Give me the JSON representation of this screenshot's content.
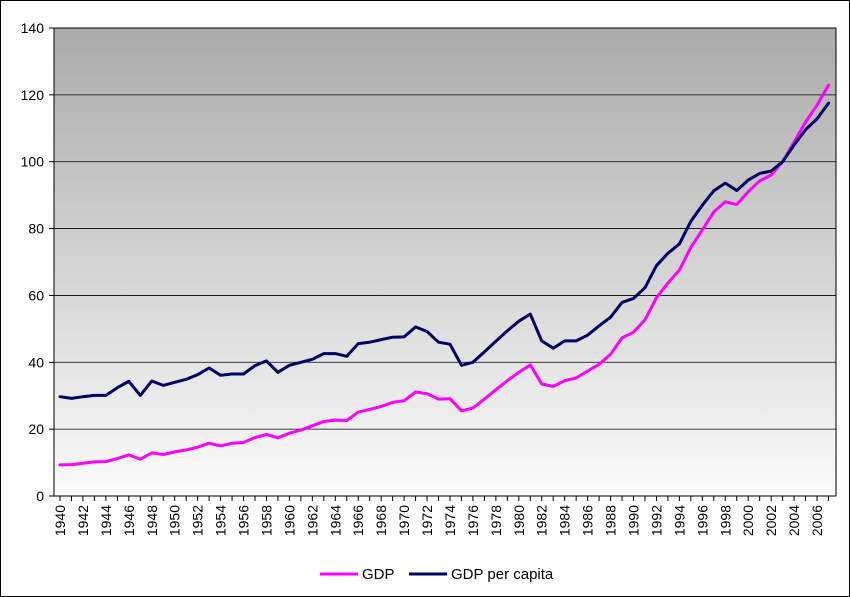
{
  "chart_data": {
    "type": "line",
    "title": "",
    "xlabel": "",
    "ylabel": "",
    "ylim": [
      0,
      140
    ],
    "yticks": [
      0,
      20,
      40,
      60,
      80,
      100,
      120,
      140
    ],
    "xlim": [
      1940,
      2007
    ],
    "xtick_labels": [
      "1940",
      "1942",
      "1944",
      "1946",
      "1948",
      "1950",
      "1952",
      "1954",
      "1956",
      "1958",
      "1960",
      "1962",
      "1964",
      "1966",
      "1968",
      "1970",
      "1972",
      "1974",
      "1976",
      "1978",
      "1980",
      "1982",
      "1984",
      "1986",
      "1988",
      "1990",
      "1992",
      "1994",
      "1996",
      "1998",
      "2000",
      "2002",
      "2004",
      "2006"
    ],
    "grid": "horizontal",
    "legend_position": "bottom",
    "background": "vertical gradient, gray to white",
    "x": [
      1940,
      1941,
      1942,
      1943,
      1944,
      1945,
      1946,
      1947,
      1948,
      1949,
      1950,
      1951,
      1952,
      1953,
      1954,
      1955,
      1956,
      1957,
      1958,
      1959,
      1960,
      1961,
      1962,
      1963,
      1964,
      1965,
      1966,
      1967,
      1968,
      1969,
      1970,
      1971,
      1972,
      1973,
      1974,
      1975,
      1976,
      1977,
      1978,
      1979,
      1980,
      1981,
      1982,
      1983,
      1984,
      1985,
      1986,
      1987,
      1988,
      1989,
      1990,
      1991,
      1992,
      1993,
      1994,
      1995,
      1996,
      1997,
      1998,
      1999,
      2000,
      2001,
      2002,
      2003,
      2004,
      2005,
      2006,
      2007
    ],
    "series": [
      {
        "name": "GDP",
        "color": "#ff00ff",
        "values": [
          9.3,
          9.4,
          9.8,
          10.2,
          10.3,
          11.2,
          12.3,
          11.0,
          12.9,
          12.4,
          13.2,
          13.8,
          14.6,
          15.8,
          15.0,
          15.8,
          16.0,
          17.5,
          18.4,
          17.4,
          18.8,
          19.7,
          21.0,
          22.3,
          22.7,
          22.6,
          25.1,
          25.9,
          26.8,
          28.0,
          28.5,
          31.1,
          30.6,
          29.0,
          29.1,
          25.5,
          26.3,
          29.0,
          31.8,
          34.5,
          37.0,
          39.2,
          33.5,
          32.8,
          34.5,
          35.3,
          37.4,
          39.4,
          42.4,
          47.3,
          49.0,
          52.7,
          59.3,
          63.7,
          67.6,
          74.4,
          79.6,
          85.0,
          88.0,
          87.2,
          91.0,
          94.3,
          96.0,
          100.0,
          105.9,
          111.9,
          116.9,
          122.9
        ]
      },
      {
        "name": "GDP per capita",
        "color": "#000066",
        "values": [
          29.7,
          29.2,
          29.7,
          30.1,
          30.1,
          32.4,
          34.3,
          30.1,
          34.4,
          33.1,
          34.0,
          34.9,
          36.3,
          38.3,
          36.1,
          36.5,
          36.5,
          39.0,
          40.4,
          37.0,
          39.1,
          40.0,
          40.9,
          42.6,
          42.6,
          41.8,
          45.6,
          46.0,
          46.8,
          47.5,
          47.6,
          50.6,
          49.2,
          46.0,
          45.4,
          39.1,
          40.0,
          43.1,
          46.3,
          49.4,
          52.3,
          54.4,
          46.4,
          44.2,
          46.4,
          46.4,
          48.1,
          50.9,
          53.5,
          57.9,
          59.1,
          62.3,
          68.9,
          72.6,
          75.4,
          82.2,
          87.0,
          91.3,
          93.6,
          91.4,
          94.5,
          96.5,
          97.2,
          100.0,
          105.0,
          109.6,
          112.8,
          117.5
        ]
      }
    ]
  }
}
